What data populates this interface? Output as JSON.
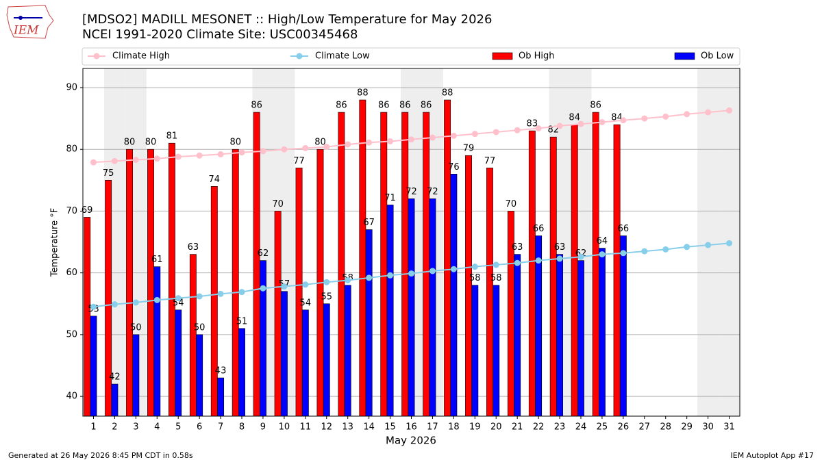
{
  "chart_data": {
    "type": "bar",
    "title": "[MDSO2] MADILL MESONET :: High/Low Temperature for May 2026",
    "subtitle": "NCEI 1991-2020 Climate Site: USC00345468",
    "logo_text": "IEM",
    "xlabel": "May 2026",
    "ylabel": "Temperature °F",
    "footer_left": "Generated at 26 May 2026 8:45 PM CDT in 0.58s",
    "footer_right": "IEM Autoplot App #17",
    "x": [
      1,
      2,
      3,
      4,
      5,
      6,
      7,
      8,
      9,
      10,
      11,
      12,
      13,
      14,
      15,
      16,
      17,
      18,
      19,
      20,
      21,
      22,
      23,
      24,
      25,
      26,
      27,
      28,
      29,
      30,
      31
    ],
    "xlim": [
      0.5,
      31.5
    ],
    "ylim": [
      36.8,
      93.1
    ],
    "yticks": [
      40,
      50,
      60,
      70,
      80,
      90
    ],
    "grid": true,
    "shaded_days": [
      2,
      3,
      9,
      10,
      16,
      17,
      23,
      24,
      30,
      31
    ],
    "series": [
      {
        "name": "Climate High",
        "kind": "line",
        "color": "#ffc0cb",
        "values": [
          77.9,
          78.1,
          78.3,
          78.5,
          78.8,
          79.0,
          79.2,
          79.5,
          79.7,
          80.0,
          80.2,
          80.4,
          80.8,
          81.1,
          81.3,
          81.6,
          81.9,
          82.2,
          82.5,
          82.8,
          83.1,
          83.4,
          83.8,
          84.1,
          84.4,
          84.7,
          85.0,
          85.3,
          85.7,
          86.0,
          86.3
        ]
      },
      {
        "name": "Climate Low",
        "kind": "line",
        "color": "#87ceeb",
        "values": [
          54.5,
          54.9,
          55.2,
          55.6,
          55.9,
          56.2,
          56.6,
          56.9,
          57.5,
          57.8,
          58.1,
          58.5,
          58.8,
          59.2,
          59.6,
          59.9,
          60.3,
          60.6,
          61.0,
          61.3,
          61.6,
          62.0,
          62.3,
          62.6,
          63.0,
          63.2,
          63.5,
          63.8,
          64.2,
          64.5,
          64.8
        ]
      },
      {
        "name": "Ob High",
        "kind": "bar",
        "color": "#ff0000",
        "values": [
          69,
          75,
          80,
          80,
          81,
          63,
          74,
          80,
          86,
          70,
          77,
          80,
          86,
          88,
          86,
          86,
          86,
          88,
          79,
          77,
          70,
          83,
          82,
          84,
          86,
          84,
          null,
          null,
          null,
          null,
          null
        ]
      },
      {
        "name": "Ob Low",
        "kind": "bar",
        "color": "#0000ff",
        "values": [
          53,
          42,
          50,
          61,
          54,
          50,
          43,
          51,
          62,
          57,
          54,
          55,
          58,
          67,
          71,
          72,
          72,
          76,
          58,
          58,
          63,
          66,
          63,
          62,
          64,
          66,
          null,
          null,
          null,
          null,
          null
        ]
      }
    ]
  }
}
